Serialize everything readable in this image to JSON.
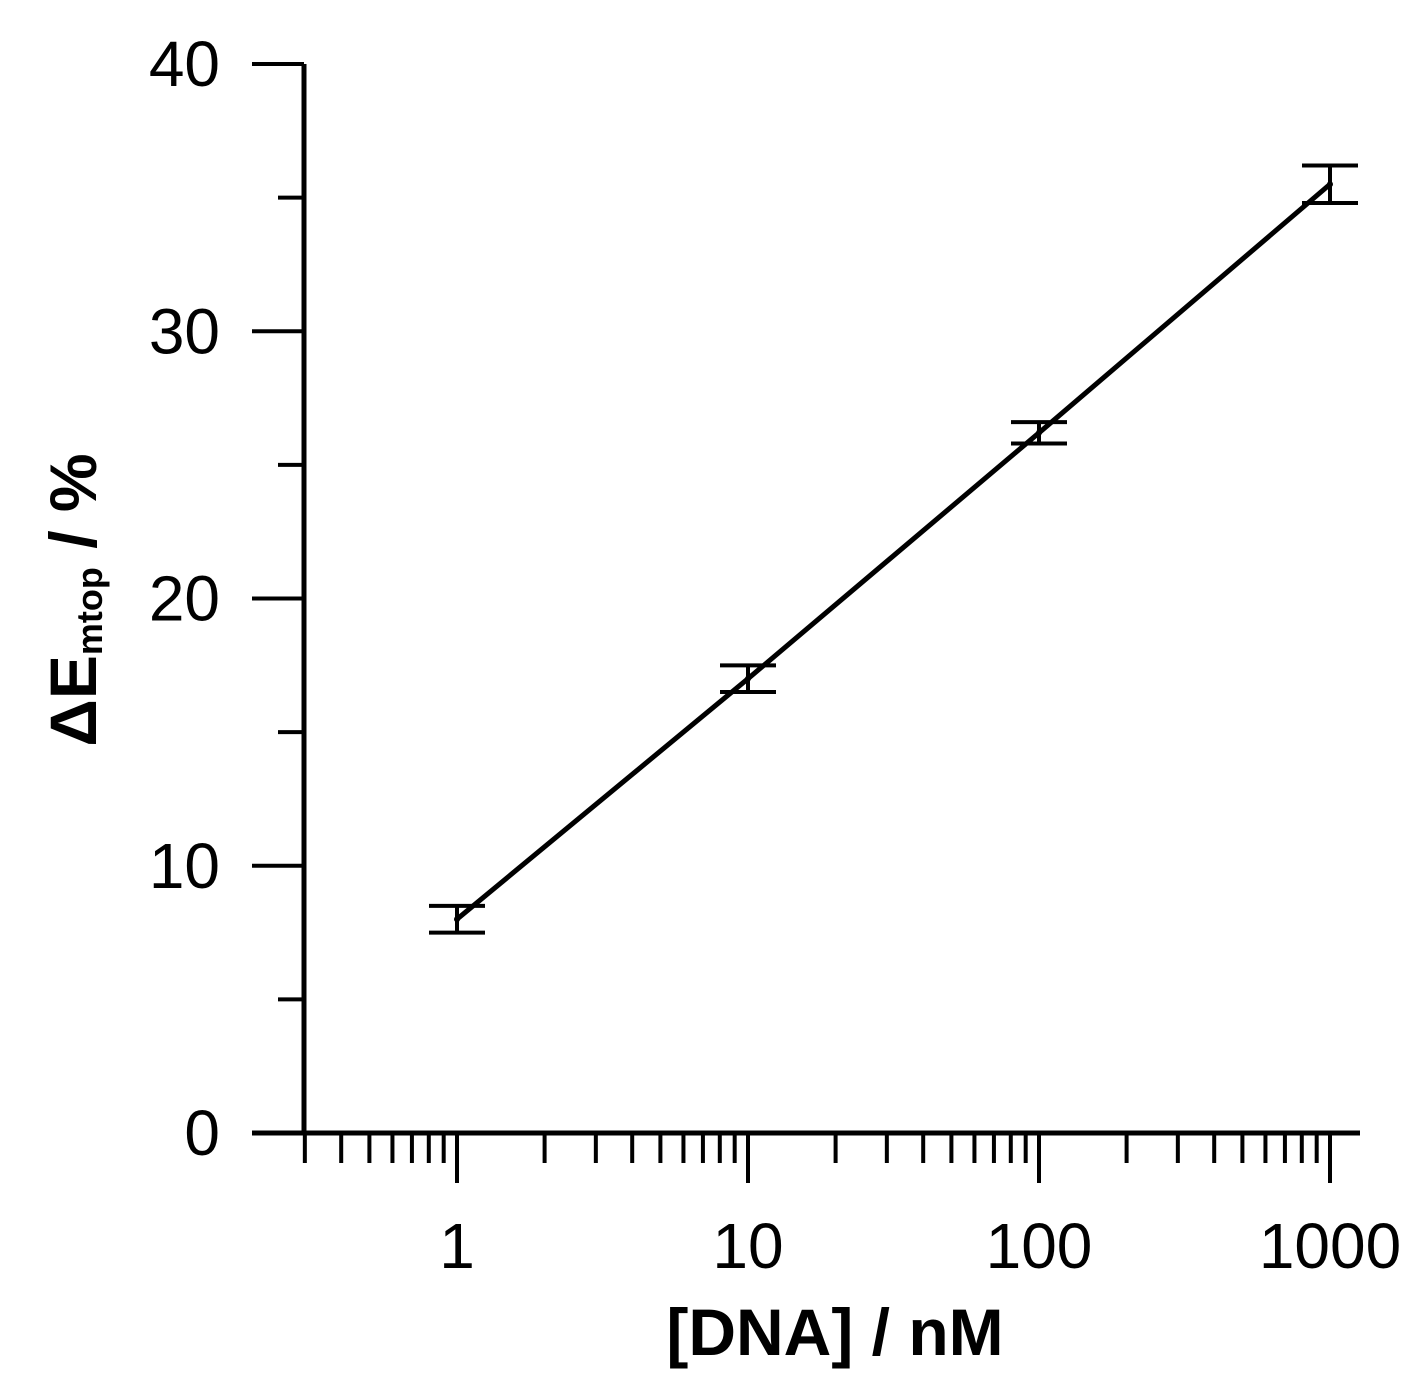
{
  "chart_data": {
    "type": "line",
    "title": "",
    "xlabel": "[DNA] / nM",
    "ylabel": {
      "main": "ΔE",
      "subscript": "mtop",
      "suffix": " / %"
    },
    "x_scale": "log",
    "xlim": [
      0.3,
      1000
    ],
    "ylim": [
      0,
      40
    ],
    "x_tick_labels": [
      "1",
      "10",
      "100",
      "1000"
    ],
    "y_tick_labels": [
      "0",
      "10",
      "20",
      "30",
      "40"
    ],
    "grid": false,
    "legend": "none",
    "series": [
      {
        "x": [
          1,
          10,
          100,
          1000
        ],
        "y": [
          8.0,
          17.0,
          26.2,
          35.5
        ],
        "error": [
          0.5,
          0.5,
          0.4,
          0.7
        ]
      }
    ],
    "color": "#000000"
  }
}
